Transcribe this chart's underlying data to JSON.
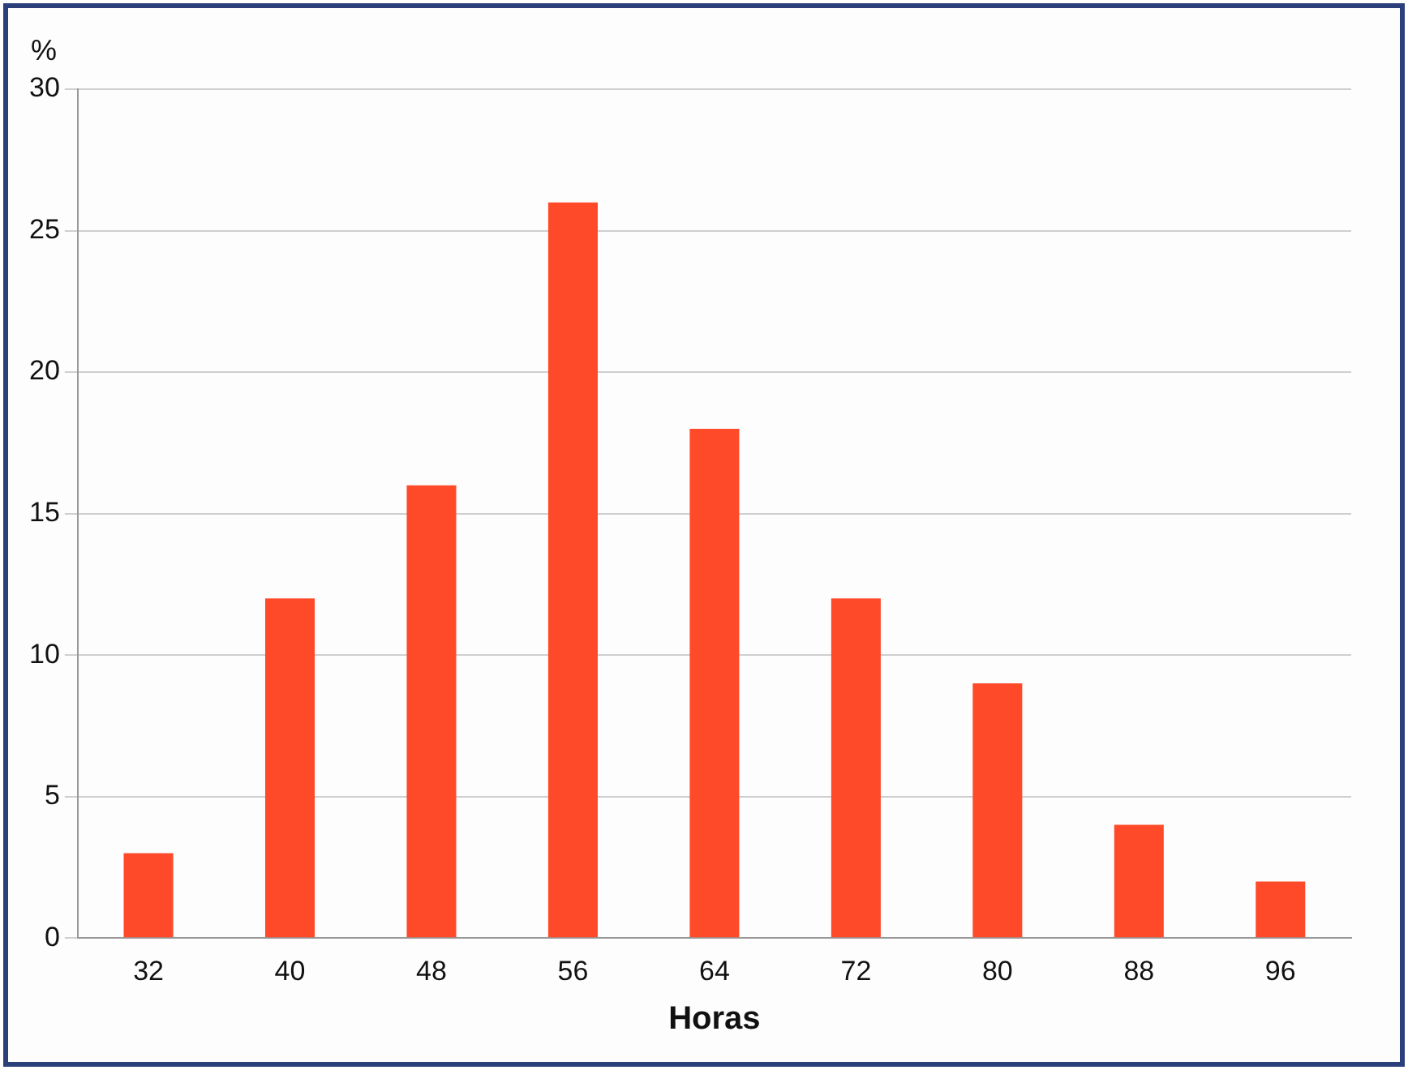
{
  "chart_data": {
    "type": "bar",
    "xlabel": "Horas",
    "ylabel": "%",
    "categories": [
      "32",
      "40",
      "48",
      "56",
      "64",
      "72",
      "80",
      "88",
      "96"
    ],
    "values": [
      3,
      12,
      16,
      26,
      18,
      12,
      9,
      4,
      2
    ],
    "color": "#ff4a2a",
    "ylim": [
      0,
      30
    ],
    "yticks": [
      0,
      5,
      10,
      15,
      20,
      25,
      30
    ],
    "grid": "y"
  }
}
